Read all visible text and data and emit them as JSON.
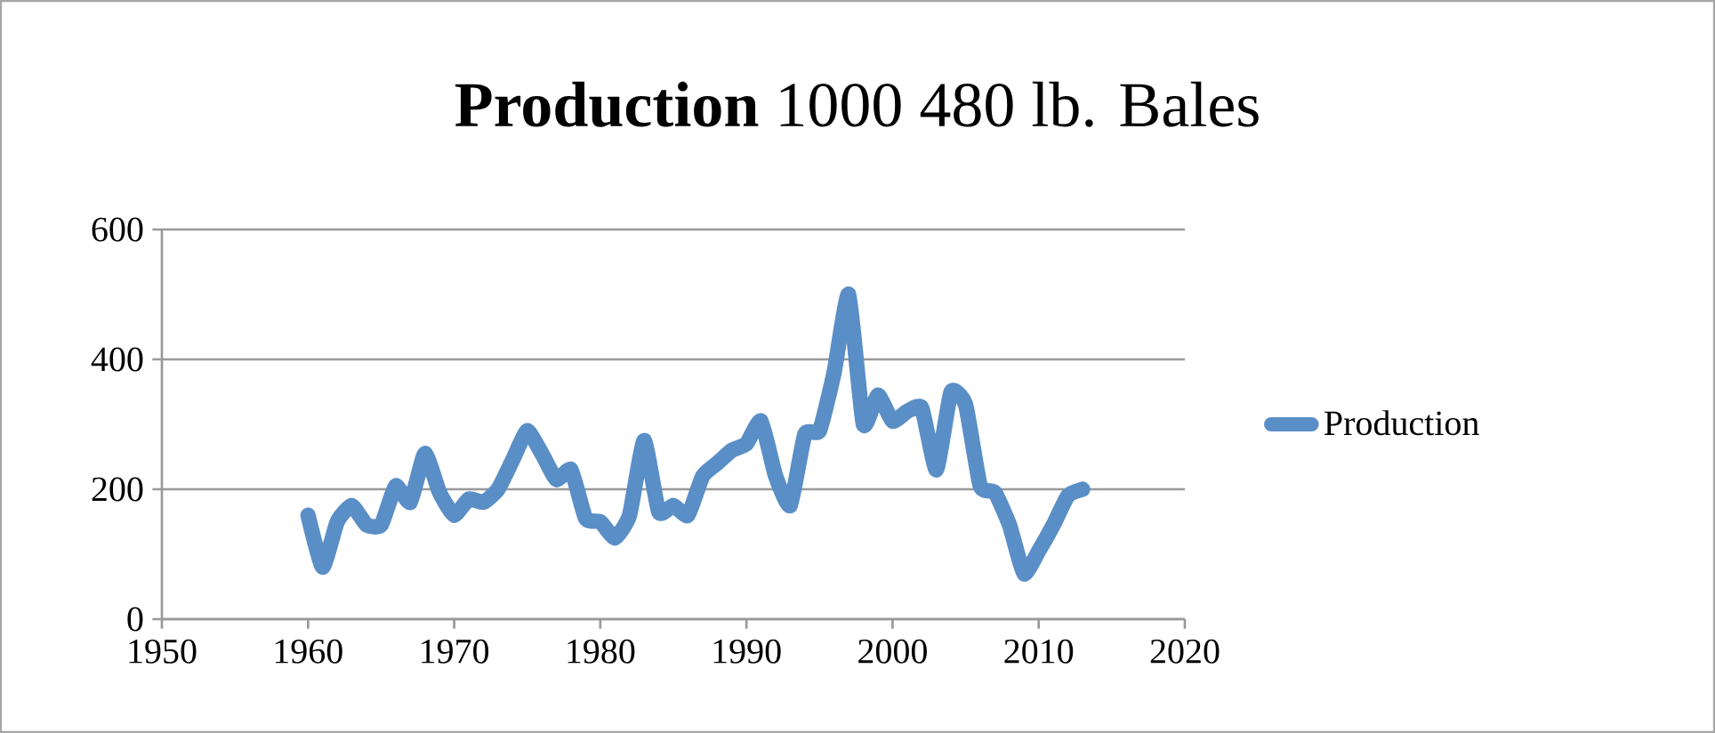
{
  "chart_data": {
    "type": "line",
    "title": "**Production** 1000 480 lb. Bales",
    "x": [
      1960,
      1961,
      1962,
      1963,
      1964,
      1965,
      1966,
      1967,
      1968,
      1969,
      1970,
      1971,
      1972,
      1973,
      1974,
      1975,
      1976,
      1977,
      1978,
      1979,
      1980,
      1981,
      1982,
      1983,
      1984,
      1985,
      1986,
      1987,
      1988,
      1989,
      1990,
      1991,
      1992,
      1993,
      1994,
      1995,
      1996,
      1997,
      1998,
      1999,
      2000,
      2001,
      2002,
      2003,
      2004,
      2005,
      2006,
      2007,
      2008,
      2009,
      2010,
      2011,
      2012,
      2013
    ],
    "series": [
      {
        "name": "Production",
        "color": "#5a8ec6",
        "values": [
          160,
          80,
          150,
          175,
          145,
          145,
          205,
          180,
          255,
          195,
          160,
          185,
          180,
          200,
          245,
          290,
          255,
          215,
          230,
          155,
          150,
          125,
          160,
          275,
          165,
          175,
          160,
          220,
          240,
          260,
          270,
          305,
          220,
          175,
          285,
          290,
          380,
          500,
          300,
          345,
          305,
          320,
          325,
          230,
          350,
          330,
          205,
          195,
          145,
          70,
          105,
          145,
          190,
          200
        ]
      }
    ],
    "xlim": [
      1950,
      2020
    ],
    "xticks": [
      1950,
      1960,
      1970,
      1980,
      1990,
      2000,
      2010,
      2020
    ],
    "ylim": [
      0,
      600
    ],
    "yticks": [
      0,
      200,
      400,
      600
    ],
    "grid": "y",
    "legend": "right",
    "line_style": "solid",
    "marker": "none"
  }
}
